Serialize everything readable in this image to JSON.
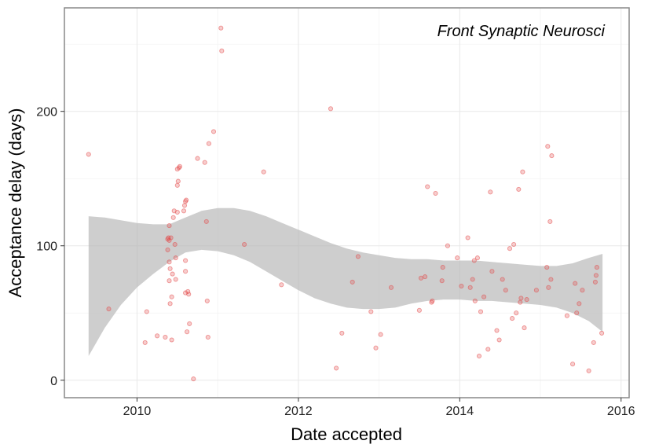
{
  "chart_data": {
    "type": "scatter",
    "title": "",
    "annotation": "Front Synaptic Neurosci",
    "xlabel": "Date accepted",
    "ylabel": "Acceptance delay (days)",
    "xlim": [
      2009.1,
      2016.1
    ],
    "ylim": [
      -13,
      277
    ],
    "x_ticks": [
      2010,
      2012,
      2014,
      2016
    ],
    "x_tick_labels": [
      "2010",
      "2012",
      "2014",
      "2016"
    ],
    "y_ticks": [
      0,
      100,
      200
    ],
    "y_tick_labels": [
      "0",
      "100",
      "200"
    ],
    "grid": true,
    "point_color": "#e34a4a",
    "ribbon_color": "#b3b3b3",
    "points": [
      {
        "x": 2009.4,
        "y": 168
      },
      {
        "x": 2009.65,
        "y": 53
      },
      {
        "x": 2010.1,
        "y": 28
      },
      {
        "x": 2010.12,
        "y": 51
      },
      {
        "x": 2010.25,
        "y": 33
      },
      {
        "x": 2010.35,
        "y": 32
      },
      {
        "x": 2010.38,
        "y": 105
      },
      {
        "x": 2010.38,
        "y": 97
      },
      {
        "x": 2010.39,
        "y": 106
      },
      {
        "x": 2010.4,
        "y": 104
      },
      {
        "x": 2010.4,
        "y": 115
      },
      {
        "x": 2010.4,
        "y": 74
      },
      {
        "x": 2010.4,
        "y": 88
      },
      {
        "x": 2010.41,
        "y": 57
      },
      {
        "x": 2010.41,
        "y": 83
      },
      {
        "x": 2010.42,
        "y": 106
      },
      {
        "x": 2010.43,
        "y": 30
      },
      {
        "x": 2010.43,
        "y": 62
      },
      {
        "x": 2010.44,
        "y": 79
      },
      {
        "x": 2010.45,
        "y": 121
      },
      {
        "x": 2010.46,
        "y": 126
      },
      {
        "x": 2010.47,
        "y": 101
      },
      {
        "x": 2010.48,
        "y": 91
      },
      {
        "x": 2010.48,
        "y": 75
      },
      {
        "x": 2010.5,
        "y": 125
      },
      {
        "x": 2010.5,
        "y": 145
      },
      {
        "x": 2010.5,
        "y": 157
      },
      {
        "x": 2010.51,
        "y": 148
      },
      {
        "x": 2010.52,
        "y": 158
      },
      {
        "x": 2010.53,
        "y": 159
      },
      {
        "x": 2010.58,
        "y": 126
      },
      {
        "x": 2010.59,
        "y": 130
      },
      {
        "x": 2010.6,
        "y": 133
      },
      {
        "x": 2010.6,
        "y": 89
      },
      {
        "x": 2010.6,
        "y": 81
      },
      {
        "x": 2010.6,
        "y": 65
      },
      {
        "x": 2010.61,
        "y": 134
      },
      {
        "x": 2010.62,
        "y": 36
      },
      {
        "x": 2010.63,
        "y": 66
      },
      {
        "x": 2010.64,
        "y": 64
      },
      {
        "x": 2010.65,
        "y": 42
      },
      {
        "x": 2010.7,
        "y": 1
      },
      {
        "x": 2010.75,
        "y": 165
      },
      {
        "x": 2010.84,
        "y": 162
      },
      {
        "x": 2010.86,
        "y": 118
      },
      {
        "x": 2010.87,
        "y": 59
      },
      {
        "x": 2010.88,
        "y": 32
      },
      {
        "x": 2010.89,
        "y": 176
      },
      {
        "x": 2010.95,
        "y": 185
      },
      {
        "x": 2011.04,
        "y": 262
      },
      {
        "x": 2011.05,
        "y": 245
      },
      {
        "x": 2011.33,
        "y": 101
      },
      {
        "x": 2011.57,
        "y": 155
      },
      {
        "x": 2011.79,
        "y": 71
      },
      {
        "x": 2012.4,
        "y": 202
      },
      {
        "x": 2012.47,
        "y": 9
      },
      {
        "x": 2012.54,
        "y": 35
      },
      {
        "x": 2012.67,
        "y": 73
      },
      {
        "x": 2012.74,
        "y": 92
      },
      {
        "x": 2012.9,
        "y": 51
      },
      {
        "x": 2012.96,
        "y": 24
      },
      {
        "x": 2013.02,
        "y": 34
      },
      {
        "x": 2013.15,
        "y": 69
      },
      {
        "x": 2013.5,
        "y": 52
      },
      {
        "x": 2013.52,
        "y": 76
      },
      {
        "x": 2013.57,
        "y": 77
      },
      {
        "x": 2013.6,
        "y": 144
      },
      {
        "x": 2013.65,
        "y": 58
      },
      {
        "x": 2013.66,
        "y": 59
      },
      {
        "x": 2013.7,
        "y": 139
      },
      {
        "x": 2013.78,
        "y": 74
      },
      {
        "x": 2013.79,
        "y": 84
      },
      {
        "x": 2013.85,
        "y": 100
      },
      {
        "x": 2013.97,
        "y": 91
      },
      {
        "x": 2014.02,
        "y": 70
      },
      {
        "x": 2014.1,
        "y": 106
      },
      {
        "x": 2014.13,
        "y": 69
      },
      {
        "x": 2014.16,
        "y": 75
      },
      {
        "x": 2014.18,
        "y": 89
      },
      {
        "x": 2014.19,
        "y": 59
      },
      {
        "x": 2014.22,
        "y": 91
      },
      {
        "x": 2014.24,
        "y": 18
      },
      {
        "x": 2014.26,
        "y": 51
      },
      {
        "x": 2014.3,
        "y": 62
      },
      {
        "x": 2014.35,
        "y": 23
      },
      {
        "x": 2014.38,
        "y": 140
      },
      {
        "x": 2014.4,
        "y": 81
      },
      {
        "x": 2014.46,
        "y": 37
      },
      {
        "x": 2014.49,
        "y": 30
      },
      {
        "x": 2014.53,
        "y": 75
      },
      {
        "x": 2014.57,
        "y": 67
      },
      {
        "x": 2014.62,
        "y": 98
      },
      {
        "x": 2014.65,
        "y": 46
      },
      {
        "x": 2014.67,
        "y": 101
      },
      {
        "x": 2014.7,
        "y": 50
      },
      {
        "x": 2014.73,
        "y": 142
      },
      {
        "x": 2014.75,
        "y": 58
      },
      {
        "x": 2014.76,
        "y": 61
      },
      {
        "x": 2014.78,
        "y": 155
      },
      {
        "x": 2014.8,
        "y": 39
      },
      {
        "x": 2014.83,
        "y": 60
      },
      {
        "x": 2014.95,
        "y": 67
      },
      {
        "x": 2015.08,
        "y": 84
      },
      {
        "x": 2015.09,
        "y": 174
      },
      {
        "x": 2015.1,
        "y": 69
      },
      {
        "x": 2015.12,
        "y": 118
      },
      {
        "x": 2015.13,
        "y": 75
      },
      {
        "x": 2015.14,
        "y": 167
      },
      {
        "x": 2015.33,
        "y": 48
      },
      {
        "x": 2015.4,
        "y": 12
      },
      {
        "x": 2015.43,
        "y": 72
      },
      {
        "x": 2015.45,
        "y": 50
      },
      {
        "x": 2015.48,
        "y": 57
      },
      {
        "x": 2015.52,
        "y": 67
      },
      {
        "x": 2015.6,
        "y": 7
      },
      {
        "x": 2015.66,
        "y": 28
      },
      {
        "x": 2015.68,
        "y": 73
      },
      {
        "x": 2015.69,
        "y": 78
      },
      {
        "x": 2015.7,
        "y": 84
      },
      {
        "x": 2015.76,
        "y": 35
      }
    ],
    "smooth": {
      "x": [
        2009.4,
        2009.6,
        2009.8,
        2010.0,
        2010.2,
        2010.4,
        2010.6,
        2010.8,
        2011.0,
        2011.2,
        2011.4,
        2011.6,
        2011.8,
        2012.0,
        2012.2,
        2012.4,
        2012.6,
        2012.8,
        2013.0,
        2013.2,
        2013.4,
        2013.6,
        2013.8,
        2014.0,
        2014.2,
        2014.4,
        2014.6,
        2014.8,
        2015.0,
        2015.2,
        2015.4,
        2015.6,
        2015.77
      ],
      "lower": [
        18,
        39,
        56,
        69,
        79,
        88,
        95,
        97,
        96,
        93,
        88,
        81,
        74,
        67,
        61,
        57,
        54,
        53,
        53,
        54,
        57,
        59,
        60,
        60,
        59,
        59,
        58,
        57,
        56,
        54,
        50,
        44,
        36
      ],
      "upper": [
        122,
        121,
        119,
        117,
        116,
        116,
        121,
        126,
        128,
        128,
        126,
        122,
        117,
        112,
        107,
        102,
        98,
        95,
        93,
        91,
        90,
        90,
        89,
        89,
        89,
        88,
        87,
        86,
        85,
        85,
        87,
        91,
        94
      ]
    }
  }
}
